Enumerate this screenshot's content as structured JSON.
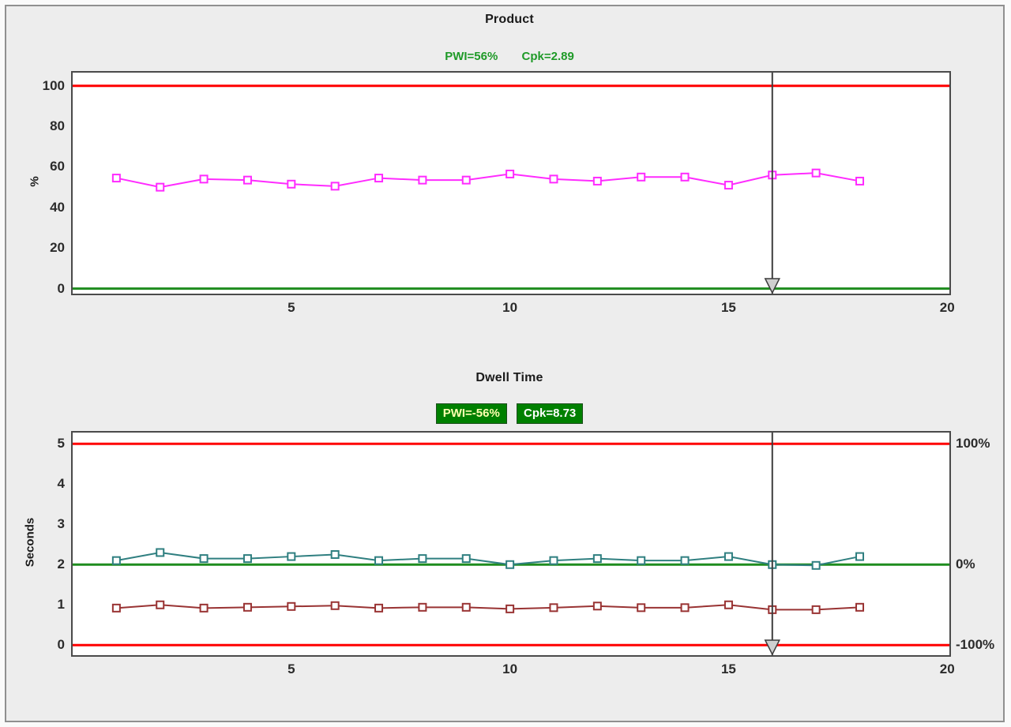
{
  "panel": {
    "background": "#ededed",
    "border_color": "#909090"
  },
  "chart_data": [
    {
      "type": "line",
      "title": "Product",
      "stats": {
        "pwi": "PWI=56%",
        "cpk": "Cpk=2.89"
      },
      "stats_style": "plain-text",
      "stats_color": "#1f9a28",
      "ylabel": "%",
      "xlabel": "",
      "ylim": [
        -2.5,
        106.5
      ],
      "xlim": [
        0,
        20.05
      ],
      "yticks": [
        0,
        20,
        40,
        60,
        80,
        100
      ],
      "xticks": [
        5,
        10,
        15,
        20
      ],
      "grid": false,
      "legend": "none",
      "ref_lines": [
        {
          "name": "upper-limit-line",
          "value": 100,
          "color": "#ff0000"
        },
        {
          "name": "lower-limit-line",
          "value": 0,
          "color": "#1e8c1e"
        }
      ],
      "cursor_x": 16,
      "x": [
        1,
        2,
        3,
        4,
        5,
        6,
        7,
        8,
        9,
        10,
        11,
        12,
        13,
        14,
        15,
        16,
        17,
        18
      ],
      "series": [
        {
          "name": "product-percent",
          "color": "#ff2bff",
          "marker": "open-square",
          "values": [
            54.5,
            50,
            54,
            53.5,
            51.5,
            50.5,
            54.5,
            53.5,
            53.5,
            56.5,
            54,
            53,
            55,
            55,
            51,
            56,
            57,
            53
          ]
        }
      ]
    },
    {
      "type": "line",
      "title": "Dwell Time",
      "stats": {
        "pwi": "PWI=-56%",
        "cpk": "Cpk=8.73"
      },
      "stats_style": "green-badges",
      "badge_bg": "#008000",
      "badge_pwi_text_color": "#ffffb0",
      "badge_cpk_text_color": "#ffffff",
      "ylabel": "Seconds",
      "xlabel": "",
      "ylim": [
        -0.25,
        5.28
      ],
      "xlim": [
        0,
        20.05
      ],
      "yticks": [
        0,
        1,
        2,
        3,
        4,
        5
      ],
      "xticks": [
        5,
        10,
        15,
        20
      ],
      "grid": false,
      "legend": "none",
      "right_axis_labels": [
        {
          "value": 5,
          "label": "100%"
        },
        {
          "value": 2,
          "label": "0%"
        },
        {
          "value": 0,
          "label": "-100%"
        }
      ],
      "ref_lines": [
        {
          "name": "upper-limit-line",
          "value": 5,
          "color": "#ff0000"
        },
        {
          "name": "target-line",
          "value": 2,
          "color": "#1e8c1e"
        },
        {
          "name": "lower-limit-line",
          "value": 0,
          "color": "#ff0000"
        }
      ],
      "cursor_x": 16,
      "x": [
        1,
        2,
        3,
        4,
        5,
        6,
        7,
        8,
        9,
        10,
        11,
        12,
        13,
        14,
        15,
        16,
        17,
        18
      ],
      "series": [
        {
          "name": "dwell-time-upper",
          "color": "#2f7f80",
          "marker": "open-square",
          "values": [
            2.1,
            2.3,
            2.15,
            2.15,
            2.2,
            2.25,
            2.1,
            2.15,
            2.15,
            2.0,
            2.1,
            2.15,
            2.1,
            2.1,
            2.2,
            2.0,
            1.98,
            2.2
          ]
        },
        {
          "name": "dwell-time-lower",
          "color": "#993333",
          "marker": "open-square",
          "values": [
            0.92,
            1.0,
            0.92,
            0.94,
            0.96,
            0.98,
            0.92,
            0.94,
            0.94,
            0.9,
            0.93,
            0.97,
            0.93,
            0.93,
            1.0,
            0.88,
            0.88,
            0.94
          ]
        }
      ],
      "cursor": {
        "color": "#3c3c3c",
        "handle_fill": "#cfcfcf"
      }
    }
  ]
}
